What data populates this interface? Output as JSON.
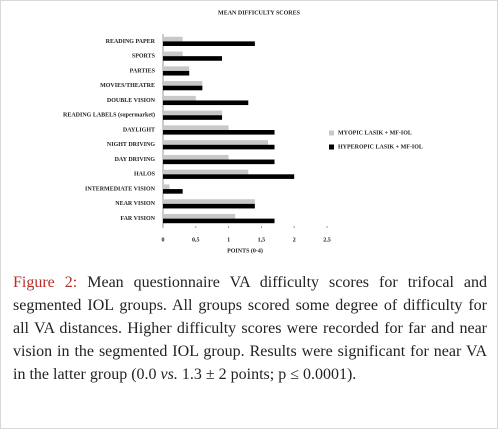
{
  "chart_data": {
    "type": "hbar",
    "title": "MEAN DIFFICULTY SCORES",
    "x_label": "POINTS (0-4)",
    "categories": [
      "READING PAPER",
      "SPORTS",
      "PARTIES",
      "MOVIES/THEATRE",
      "DOUBLE VISION",
      "READING LABELS (supermarket)",
      "DAYLIGHT",
      "NIGHT DRIVING",
      "DAY DRIVING",
      "HALOS",
      "INTERMEDIATE VISION",
      "NEAR VISION",
      "FAR VISION"
    ],
    "series": [
      {
        "name": "MYOPIC LASIK + MF-IOL",
        "color": "#c8c8c8",
        "values": [
          0.3,
          0.3,
          0.4,
          0.6,
          0.5,
          0.9,
          1.0,
          1.6,
          1.0,
          1.3,
          0.1,
          1.4,
          1.1
        ]
      },
      {
        "name": "HYPEROPIC LASIK + MF-IOL",
        "color": "#000000",
        "values": [
          1.4,
          0.9,
          0.4,
          0.6,
          1.3,
          0.9,
          1.7,
          1.7,
          1.7,
          2.0,
          0.3,
          1.4,
          1.7
        ]
      }
    ],
    "xlim": [
      0,
      2.5
    ],
    "xticks": [
      0,
      {
        "value": 0.5,
        "label": "0,5"
      },
      1,
      {
        "value": 1.5,
        "label": "1,5"
      },
      2,
      {
        "value": 2.5,
        "label": "2,5"
      }
    ],
    "grid": false,
    "legend": "right"
  },
  "caption": {
    "label": "Figure 2:",
    "text": " Mean questionnaire VA difficulty scores for trifocal and segmented IOL groups. All groups scored some degree of difficulty for all VA distances. Higher difficulty scores were recorded for far and near vision in the segmented IOL group. Results were significant for near VA in the latter group (0.0 ",
    "italic": "vs.",
    "tail": " 1.3 ± 2 points; p ≤ 0.0001)."
  }
}
